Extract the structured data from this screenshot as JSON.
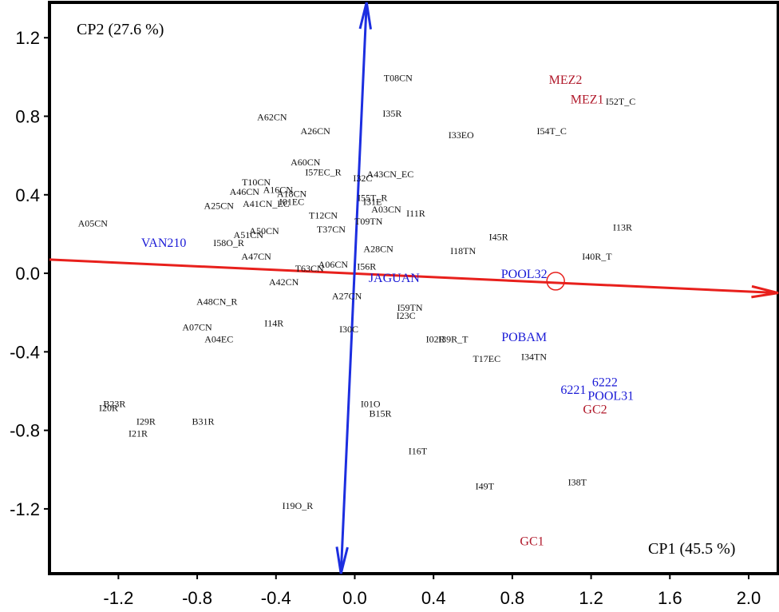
{
  "chart_data": {
    "type": "scatter",
    "title": "",
    "xlabel": "CP1 (45.5 %)",
    "ylabel": "CP2 (27.6 %)",
    "xlim": [
      -1.55,
      2.15
    ],
    "ylim": [
      -1.53,
      1.38
    ],
    "xticks": [
      "-1.2",
      "-0.8",
      "-0.4",
      "0.0",
      "0.4",
      "0.8",
      "1.2",
      "1.6",
      "2.0"
    ],
    "xtick_values": [
      -1.2,
      -0.8,
      -0.4,
      0.0,
      0.4,
      0.8,
      1.2,
      1.6,
      2.0
    ],
    "yticks": [
      "1.2",
      "0.8",
      "0.4",
      "0.0",
      "-0.4",
      "-0.8",
      "-1.2"
    ],
    "ytick_values": [
      1.2,
      0.8,
      0.4,
      0.0,
      -0.4,
      -0.8,
      -1.2
    ],
    "colors": {
      "black": "#111111",
      "blue": "#1a1ad6",
      "red": "#b0182a",
      "cp1_axis": "#e8201c",
      "cp2_axis": "#1c2ee0"
    },
    "axis_lines": [
      {
        "name": "CP1",
        "x1": -1.55,
        "y1": 0.07,
        "x2": 2.15,
        "y2": -0.1,
        "color": "#e8201c"
      },
      {
        "name": "CP2",
        "x1": 0.06,
        "y1": 1.38,
        "x2": -0.07,
        "y2": -1.53,
        "color": "#1c2ee0"
      }
    ],
    "circle_marker": {
      "x": 1.02,
      "y": -0.04
    },
    "points": [
      {
        "label": "T08CN",
        "x": 0.22,
        "y": 0.99,
        "group": "black"
      },
      {
        "label": "I35R",
        "x": 0.19,
        "y": 0.81,
        "group": "black"
      },
      {
        "label": "A62CN",
        "x": -0.42,
        "y": 0.79,
        "group": "black"
      },
      {
        "label": "A26CN",
        "x": -0.2,
        "y": 0.72,
        "group": "black"
      },
      {
        "label": "I33EO",
        "x": 0.54,
        "y": 0.7,
        "group": "black"
      },
      {
        "label": "I54T_C",
        "x": 1.0,
        "y": 0.72,
        "group": "black"
      },
      {
        "label": "I52T_C",
        "x": 1.35,
        "y": 0.87,
        "group": "black"
      },
      {
        "label": "A60CN",
        "x": -0.25,
        "y": 0.56,
        "group": "black"
      },
      {
        "label": "I57EC_R",
        "x": -0.16,
        "y": 0.51,
        "group": "black"
      },
      {
        "label": "A43CN_EC",
        "x": 0.18,
        "y": 0.5,
        "group": "black"
      },
      {
        "label": "I32C",
        "x": 0.04,
        "y": 0.48,
        "group": "black"
      },
      {
        "label": "T10CN",
        "x": -0.5,
        "y": 0.46,
        "group": "black"
      },
      {
        "label": "A46CN",
        "x": -0.56,
        "y": 0.41,
        "group": "black"
      },
      {
        "label": "A16CN",
        "x": -0.39,
        "y": 0.42,
        "group": "black"
      },
      {
        "label": "A18CN",
        "x": -0.32,
        "y": 0.4,
        "group": "black"
      },
      {
        "label": "I55T_R",
        "x": 0.09,
        "y": 0.38,
        "group": "black"
      },
      {
        "label": "I31E",
        "x": 0.09,
        "y": 0.36,
        "group": "black"
      },
      {
        "label": "A25CN",
        "x": -0.69,
        "y": 0.34,
        "group": "black"
      },
      {
        "label": "A41CN_EC",
        "x": -0.45,
        "y": 0.35,
        "group": "black"
      },
      {
        "label": "I01EC",
        "x": -0.32,
        "y": 0.36,
        "group": "black"
      },
      {
        "label": "A03CN",
        "x": 0.16,
        "y": 0.32,
        "group": "black"
      },
      {
        "label": "I11R",
        "x": 0.31,
        "y": 0.3,
        "group": "black"
      },
      {
        "label": "T12CN",
        "x": -0.16,
        "y": 0.29,
        "group": "black"
      },
      {
        "label": "T09TN",
        "x": 0.07,
        "y": 0.26,
        "group": "black"
      },
      {
        "label": "A05CN",
        "x": -1.33,
        "y": 0.25,
        "group": "black"
      },
      {
        "label": "T37CN",
        "x": -0.12,
        "y": 0.22,
        "group": "black"
      },
      {
        "label": "A50CN",
        "x": -0.46,
        "y": 0.21,
        "group": "black"
      },
      {
        "label": "A51CN",
        "x": -0.54,
        "y": 0.19,
        "group": "black"
      },
      {
        "label": "I58O_R",
        "x": -0.64,
        "y": 0.15,
        "group": "black"
      },
      {
        "label": "I45R",
        "x": 0.73,
        "y": 0.18,
        "group": "black"
      },
      {
        "label": "I13R",
        "x": 1.36,
        "y": 0.23,
        "group": "black"
      },
      {
        "label": "A28CN",
        "x": 0.12,
        "y": 0.12,
        "group": "black"
      },
      {
        "label": "I18TN",
        "x": 0.55,
        "y": 0.11,
        "group": "black"
      },
      {
        "label": "A47CN",
        "x": -0.5,
        "y": 0.08,
        "group": "black"
      },
      {
        "label": "I40R_T",
        "x": 1.23,
        "y": 0.08,
        "group": "black"
      },
      {
        "label": "A06CN",
        "x": -0.11,
        "y": 0.04,
        "group": "black"
      },
      {
        "label": "I56R",
        "x": 0.06,
        "y": 0.03,
        "group": "black"
      },
      {
        "label": "T63CN",
        "x": -0.23,
        "y": 0.02,
        "group": "black"
      },
      {
        "label": "A42CN",
        "x": -0.36,
        "y": -0.05,
        "group": "black"
      },
      {
        "label": "A48CN_R",
        "x": -0.7,
        "y": -0.15,
        "group": "black"
      },
      {
        "label": "A27CN",
        "x": -0.04,
        "y": -0.12,
        "group": "black"
      },
      {
        "label": "I59TN",
        "x": 0.28,
        "y": -0.18,
        "group": "black"
      },
      {
        "label": "I23C",
        "x": 0.26,
        "y": -0.22,
        "group": "black"
      },
      {
        "label": "I14R",
        "x": -0.41,
        "y": -0.26,
        "group": "black"
      },
      {
        "label": "A07CN",
        "x": -0.8,
        "y": -0.28,
        "group": "black"
      },
      {
        "label": "I30C",
        "x": -0.03,
        "y": -0.29,
        "group": "black"
      },
      {
        "label": "A04EC",
        "x": -0.69,
        "y": -0.34,
        "group": "black"
      },
      {
        "label": "I02R",
        "x": 0.41,
        "y": -0.34,
        "group": "black"
      },
      {
        "label": "I39R_T",
        "x": 0.5,
        "y": -0.34,
        "group": "black"
      },
      {
        "label": "T17EC",
        "x": 0.67,
        "y": -0.44,
        "group": "black"
      },
      {
        "label": "I34TN",
        "x": 0.91,
        "y": -0.43,
        "group": "black"
      },
      {
        "label": "B23R",
        "x": -1.22,
        "y": -0.67,
        "group": "black"
      },
      {
        "label": "I20R",
        "x": -1.25,
        "y": -0.69,
        "group": "black"
      },
      {
        "label": "I01O",
        "x": 0.08,
        "y": -0.67,
        "group": "black"
      },
      {
        "label": "B15R",
        "x": 0.13,
        "y": -0.72,
        "group": "black"
      },
      {
        "label": "I29R",
        "x": -1.06,
        "y": -0.76,
        "group": "black"
      },
      {
        "label": "B31R",
        "x": -0.77,
        "y": -0.76,
        "group": "black"
      },
      {
        "label": "I21R",
        "x": -1.1,
        "y": -0.82,
        "group": "black"
      },
      {
        "label": "I16T",
        "x": 0.32,
        "y": -0.91,
        "group": "black"
      },
      {
        "label": "I38T",
        "x": 1.13,
        "y": -1.07,
        "group": "black"
      },
      {
        "label": "I49T",
        "x": 0.66,
        "y": -1.09,
        "group": "black"
      },
      {
        "label": "I19O_R",
        "x": -0.29,
        "y": -1.19,
        "group": "black"
      },
      {
        "label": "VAN210",
        "x": -0.97,
        "y": 0.15,
        "group": "blue"
      },
      {
        "label": "JAGUAN",
        "x": 0.2,
        "y": -0.03,
        "group": "blue"
      },
      {
        "label": "POOL32",
        "x": 0.86,
        "y": -0.01,
        "group": "blue"
      },
      {
        "label": "POBAM",
        "x": 0.86,
        "y": -0.33,
        "group": "blue"
      },
      {
        "label": "6222",
        "x": 1.27,
        "y": -0.56,
        "group": "blue"
      },
      {
        "label": "6221",
        "x": 1.11,
        "y": -0.6,
        "group": "blue"
      },
      {
        "label": "POOL31",
        "x": 1.3,
        "y": -0.63,
        "group": "blue"
      },
      {
        "label": "MEZ2",
        "x": 1.07,
        "y": 0.98,
        "group": "red"
      },
      {
        "label": "MEZ1",
        "x": 1.18,
        "y": 0.88,
        "group": "red"
      },
      {
        "label": "GC2",
        "x": 1.22,
        "y": -0.7,
        "group": "red"
      },
      {
        "label": "GC1",
        "x": 0.9,
        "y": -1.37,
        "group": "red"
      }
    ]
  }
}
